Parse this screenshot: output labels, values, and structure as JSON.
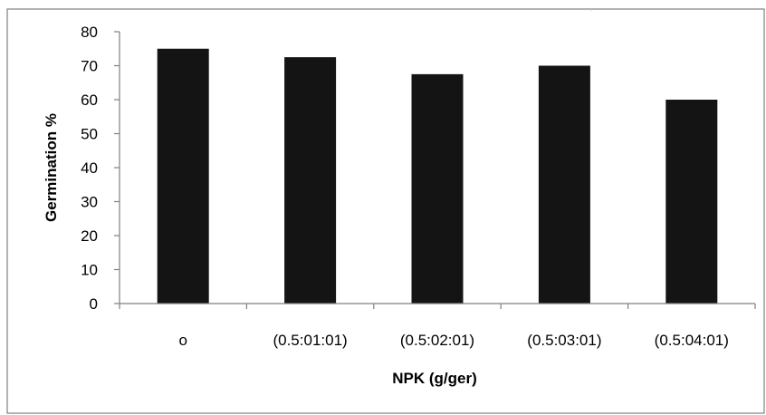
{
  "chart_data": {
    "type": "bar",
    "categories": [
      "o",
      "(0.5:01:01)",
      "(0.5:02:01)",
      "(0.5:03:01)",
      "(0.5:04:01)"
    ],
    "values": [
      75,
      72.5,
      67.5,
      70,
      60
    ],
    "xlabel": "NPK (g/ger)",
    "ylabel": "Germination %",
    "ylim": [
      0,
      80
    ],
    "yticks": [
      0,
      10,
      20,
      30,
      40,
      50,
      60,
      70,
      80
    ],
    "grid": false,
    "legend": "none",
    "bar_color": "#141414",
    "axis_color": "#808080",
    "frame_color": "#808080"
  }
}
